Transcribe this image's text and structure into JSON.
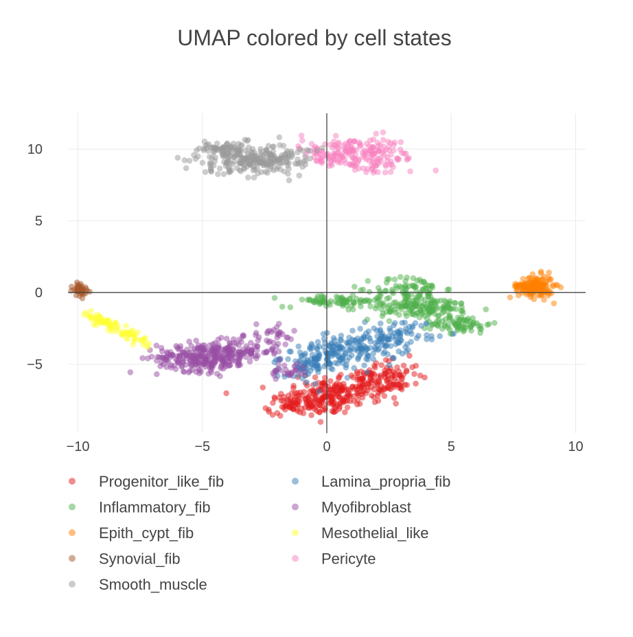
{
  "chart_data": {
    "type": "scatter",
    "title": "UMAP colored by cell states",
    "xlabel": "",
    "ylabel": "",
    "xlim": [
      -10.4,
      10.4
    ],
    "ylim": [
      -9.8,
      12.5
    ],
    "xticks": [
      -10,
      -5,
      0,
      5,
      10
    ],
    "xtick_labels": [
      "−10",
      "−5",
      "0",
      "5",
      "10"
    ],
    "yticks": [
      -5,
      0,
      5,
      10
    ],
    "ytick_labels": [
      "−5",
      "0",
      "5",
      "10"
    ],
    "grid": true,
    "zero_lines": true,
    "legend_position": "bottom",
    "series": [
      {
        "name": "Progenitor_like_fib",
        "color": "#e41a1c",
        "clusters": [
          {
            "cx": 0.0,
            "cy": -7.3,
            "sx": 1.0,
            "sy": 0.6,
            "n": 140
          },
          {
            "cx": 1.3,
            "cy": -6.5,
            "sx": 1.0,
            "sy": 0.6,
            "n": 110
          },
          {
            "cx": 2.5,
            "cy": -5.8,
            "sx": 0.6,
            "sy": 0.6,
            "n": 70
          },
          {
            "cx": -1.2,
            "cy": -7.9,
            "sx": 0.6,
            "sy": 0.35,
            "n": 60
          }
        ]
      },
      {
        "name": "Lamina_propria_fib",
        "color": "#377eb8",
        "clusters": [
          {
            "cx": 0.0,
            "cy": -4.5,
            "sx": 0.9,
            "sy": 0.5,
            "n": 110
          },
          {
            "cx": 1.5,
            "cy": -3.7,
            "sx": 0.9,
            "sy": 0.5,
            "n": 100
          },
          {
            "cx": 3.0,
            "cy": -2.8,
            "sx": 0.7,
            "sy": 0.45,
            "n": 60
          },
          {
            "cx": -1.0,
            "cy": -5.4,
            "sx": 0.5,
            "sy": 0.5,
            "n": 40
          }
        ]
      },
      {
        "name": "Inflammatory_fib",
        "color": "#4daf4a",
        "clusters": [
          {
            "cx": 0.3,
            "cy": -0.6,
            "sx": 1.0,
            "sy": 0.2,
            "n": 70
          },
          {
            "cx": 3.2,
            "cy": -1.0,
            "sx": 1.0,
            "sy": 0.4,
            "n": 110
          },
          {
            "cx": 5.4,
            "cy": -2.2,
            "sx": 0.6,
            "sy": 0.3,
            "n": 70
          },
          {
            "cx": 3.3,
            "cy": 0.3,
            "sx": 0.7,
            "sy": 0.45,
            "n": 70
          },
          {
            "cx": 4.5,
            "cy": -1.1,
            "sx": 0.7,
            "sy": 0.4,
            "n": 50
          }
        ]
      },
      {
        "name": "Myofibroblast",
        "color": "#984ea3",
        "clusters": [
          {
            "cx": -5.0,
            "cy": -4.5,
            "sx": 0.9,
            "sy": 0.5,
            "n": 240
          },
          {
            "cx": -3.5,
            "cy": -4.1,
            "sx": 0.7,
            "sy": 0.45,
            "n": 90
          },
          {
            "cx": -2.2,
            "cy": -3.0,
            "sx": 0.5,
            "sy": 0.5,
            "n": 30
          },
          {
            "cx": -1.5,
            "cy": -5.5,
            "sx": 0.4,
            "sy": 0.3,
            "n": 25
          }
        ]
      },
      {
        "name": "Epith_cypt_fib",
        "color": "#ff7f00",
        "clusters": [
          {
            "cx": 8.4,
            "cy": 0.4,
            "sx": 0.35,
            "sy": 0.4,
            "n": 140
          },
          {
            "cx": 7.8,
            "cy": 0.5,
            "sx": 0.15,
            "sy": 0.15,
            "n": 10
          }
        ]
      },
      {
        "name": "Mesothelial_like",
        "color": "#ffff33",
        "line": {
          "x0": -9.7,
          "y0": -1.4,
          "x1": -7.2,
          "y1": -3.6,
          "sd": 0.15,
          "n": 90
        }
      },
      {
        "name": "Synovial_fib",
        "color": "#a65628",
        "clusters": [
          {
            "cx": -9.9,
            "cy": 0.2,
            "sx": 0.15,
            "sy": 0.2,
            "n": 45
          }
        ]
      },
      {
        "name": "Pericyte",
        "color": "#f781bf",
        "clusters": [
          {
            "cx": 1.5,
            "cy": 9.6,
            "sx": 1.0,
            "sy": 0.6,
            "n": 170
          },
          {
            "cx": 0.0,
            "cy": 9.8,
            "sx": 0.5,
            "sy": 0.4,
            "n": 40
          }
        ]
      },
      {
        "name": "Smooth_muscle",
        "color": "#999999",
        "clusters": [
          {
            "cx": -2.8,
            "cy": 9.3,
            "sx": 1.1,
            "sy": 0.55,
            "n": 250
          },
          {
            "cx": -4.2,
            "cy": 10.0,
            "sx": 0.5,
            "sy": 0.25,
            "n": 50
          }
        ]
      }
    ],
    "legend_order": [
      "Progenitor_like_fib",
      "Inflammatory_fib",
      "Epith_cypt_fib",
      "Synovial_fib",
      "Smooth_muscle",
      "Lamina_propria_fib",
      "Myofibroblast",
      "Mesothelial_like",
      "Pericyte"
    ]
  }
}
